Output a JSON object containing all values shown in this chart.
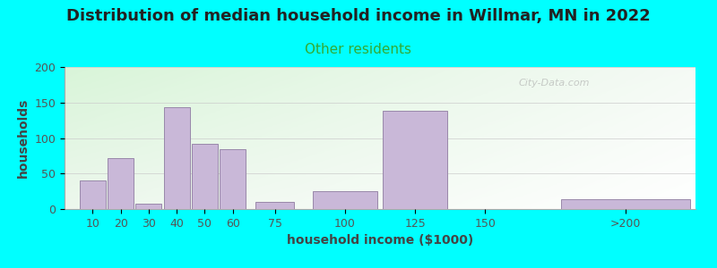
{
  "title": "Distribution of median household income in Willmar, MN in 2022",
  "subtitle": "Other residents",
  "xlabel": "household income ($1000)",
  "ylabel": "households",
  "background_color": "#00FFFF",
  "bar_color": "#C9B8D8",
  "bar_edge_color": "#9988AA",
  "watermark": "City-Data.com",
  "bar_left_edges": [
    5,
    15,
    25,
    35,
    45,
    55,
    67.5,
    87.5,
    112.5,
    137.5,
    175
  ],
  "bar_widths": [
    10,
    10,
    10,
    10,
    10,
    10,
    15,
    25,
    25,
    25,
    50
  ],
  "values": [
    40,
    72,
    8,
    144,
    92,
    84,
    10,
    25,
    138,
    0,
    14
  ],
  "xtick_positions": [
    10,
    20,
    30,
    40,
    50,
    60,
    75,
    100,
    125,
    150,
    999
  ],
  "xtick_labels": [
    "10",
    "20",
    "30",
    "40",
    "50",
    "60",
    "75",
    "100",
    "125",
    "150",
    ">200"
  ],
  "xlim": [
    0,
    225
  ],
  "ylim": [
    0,
    200
  ],
  "yticks": [
    0,
    50,
    100,
    150,
    200
  ],
  "title_fontsize": 13,
  "subtitle_fontsize": 11,
  "axis_label_fontsize": 10,
  "tick_fontsize": 9,
  "title_color": "#222222",
  "subtitle_color": "#33aa33",
  "axis_label_color": "#444444",
  "tick_color": "#555555"
}
